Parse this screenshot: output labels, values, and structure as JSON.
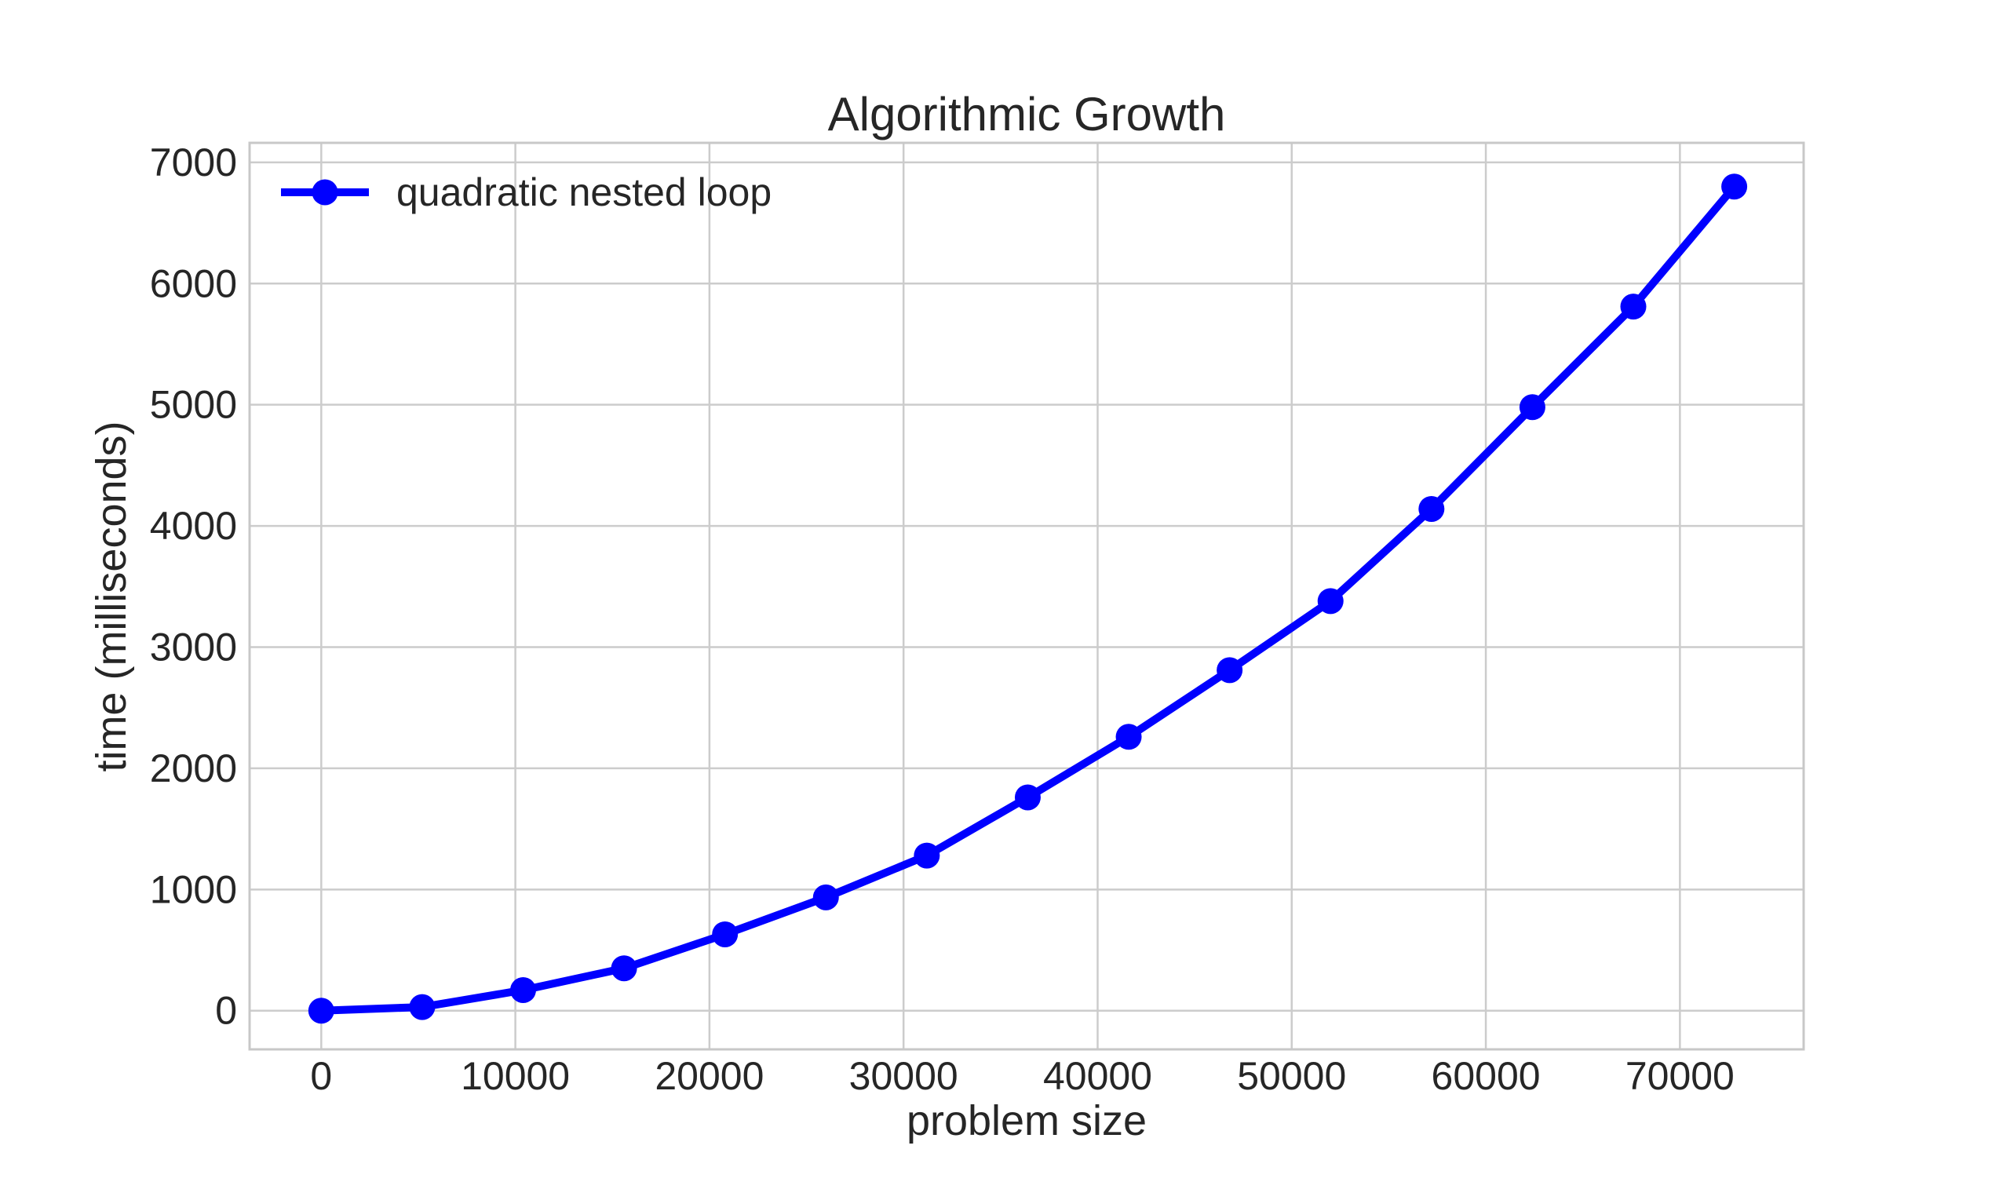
{
  "chart_data": {
    "type": "line",
    "title": "Algorithmic Growth",
    "xlabel": "problem size",
    "ylabel": "time (milliseconds)",
    "series": [
      {
        "name": "quadratic nested loop",
        "x": [
          0,
          5200,
          10400,
          15600,
          20800,
          26000,
          31200,
          36400,
          41600,
          46800,
          52000,
          57200,
          62400,
          67600,
          72800
        ],
        "y": [
          0,
          30,
          170,
          350,
          630,
          935,
          1280,
          1760,
          2260,
          2810,
          3380,
          4140,
          4980,
          5810,
          6800
        ],
        "color": "#0000ff",
        "marker": "circle"
      }
    ],
    "x_ticks": [
      0,
      10000,
      20000,
      30000,
      40000,
      50000,
      60000,
      70000
    ],
    "y_ticks": [
      0,
      1000,
      2000,
      3000,
      4000,
      5000,
      6000,
      7000
    ],
    "xlim": [
      -3693,
      76375
    ],
    "ylim": [
      -319,
      7161
    ],
    "grid": true,
    "legend_position": "upper left",
    "colors": {
      "background": "#ffffff",
      "grid": "#cccccc",
      "spine": "#c8c8c8",
      "text": "#262626",
      "line": "#0000ff"
    }
  }
}
